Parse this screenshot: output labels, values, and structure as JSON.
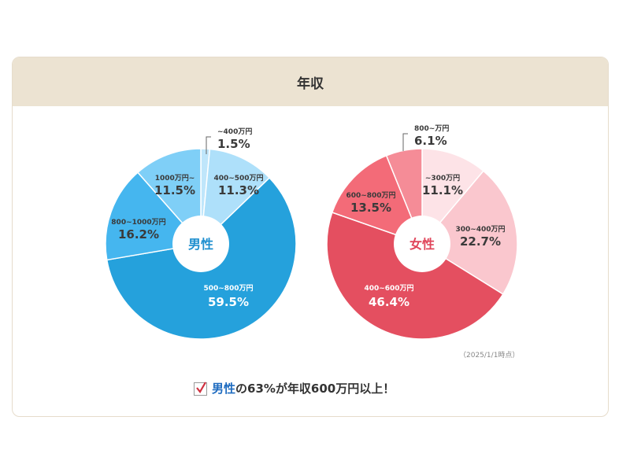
{
  "title": "年収",
  "as_of": "（2025/1/1時点）",
  "summary": {
    "male_word": "男性",
    "rest": "の63%が年収600万円以上！"
  },
  "colors": {
    "header_bg": "#ece3d2",
    "male_accent": "#1f8fcf",
    "female_accent": "#e0455a"
  },
  "chart_data": [
    {
      "type": "pie",
      "center_label": "男性",
      "slices": [
        {
          "label": "~400万円",
          "value": 1.5,
          "pct": "1.5%",
          "color": "#bfe6fb"
        },
        {
          "label": "400~500万円",
          "value": 11.3,
          "pct": "11.3%",
          "color": "#aee0fa"
        },
        {
          "label": "500~800万円",
          "value": 59.5,
          "pct": "59.5%",
          "color": "#25a1dc"
        },
        {
          "label": "800~1000万円",
          "value": 16.2,
          "pct": "16.2%",
          "color": "#45b6ef"
        },
        {
          "label": "1000万円~",
          "value": 11.5,
          "pct": "11.5%",
          "color": "#7fcff7"
        }
      ]
    },
    {
      "type": "pie",
      "center_label": "女性",
      "slices": [
        {
          "label": "~300万円",
          "value": 11.1,
          "pct": "11.1%",
          "color": "#fde3e7"
        },
        {
          "label": "300~400万円",
          "value": 22.7,
          "pct": "22.7%",
          "color": "#fac7ce"
        },
        {
          "label": "400~600万円",
          "value": 46.4,
          "pct": "46.4%",
          "color": "#e44f60"
        },
        {
          "label": "600~800万円",
          "value": 13.5,
          "pct": "13.5%",
          "color": "#f36b78"
        },
        {
          "label": "800~万円",
          "value": 6.1,
          "pct": "6.1%",
          "color": "#f58c97"
        }
      ]
    }
  ]
}
